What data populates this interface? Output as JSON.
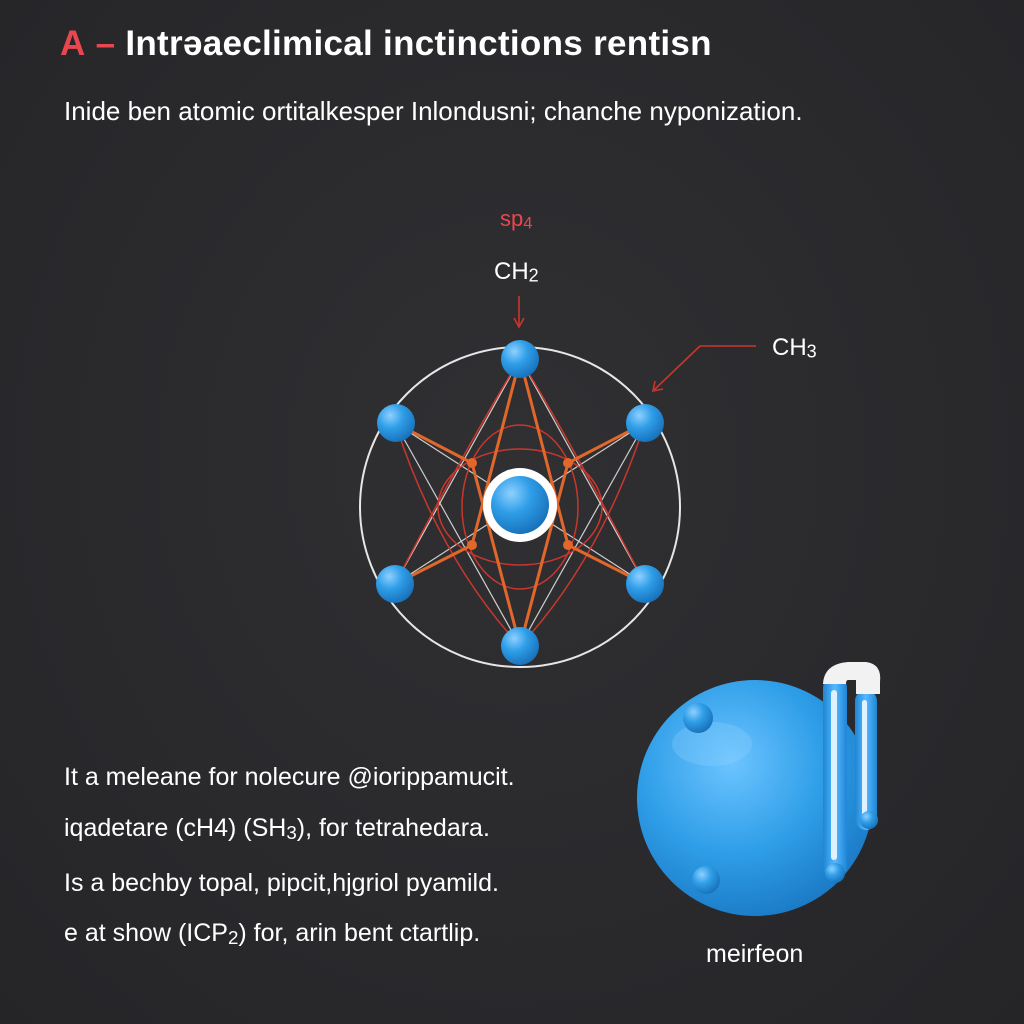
{
  "header": {
    "title_letter": "A",
    "title_dash": "–",
    "title_text": "Intrəaeclimical inctinctions rentisn",
    "subtitle": "Inide ben atomic ortitalkesper Inlondusni; chanche nyponization."
  },
  "diagram": {
    "label_sp": "sp",
    "label_sp_sub": "4",
    "label_ch2": "CH",
    "label_ch2_sub": "2",
    "label_ch3": "CH",
    "label_ch3_sub": "3",
    "colors": {
      "atom": "#2f9ee8",
      "bond": "#e2672a",
      "orbital": "#c9372c",
      "ring": "#e6e6e6",
      "accent_red": "#e8474f"
    }
  },
  "body_text": {
    "line1": "It a meleane for nolecure @iorippamucit.",
    "line2_a": "iqadetare (cH4)   (SH",
    "line2_sub": "3",
    "line2_b": "),  for  tetrahedara.",
    "line3": "Is a bechby topal, pipcit,hjgriol pyamild.",
    "line4_a": "e at show (ICP",
    "line4_sub": "2",
    "line4_b": ") for, arin bent ctartlip."
  },
  "illustration": {
    "caption": "meirfeon",
    "icons": [
      "sphere-model-icon",
      "pin-icon"
    ]
  }
}
